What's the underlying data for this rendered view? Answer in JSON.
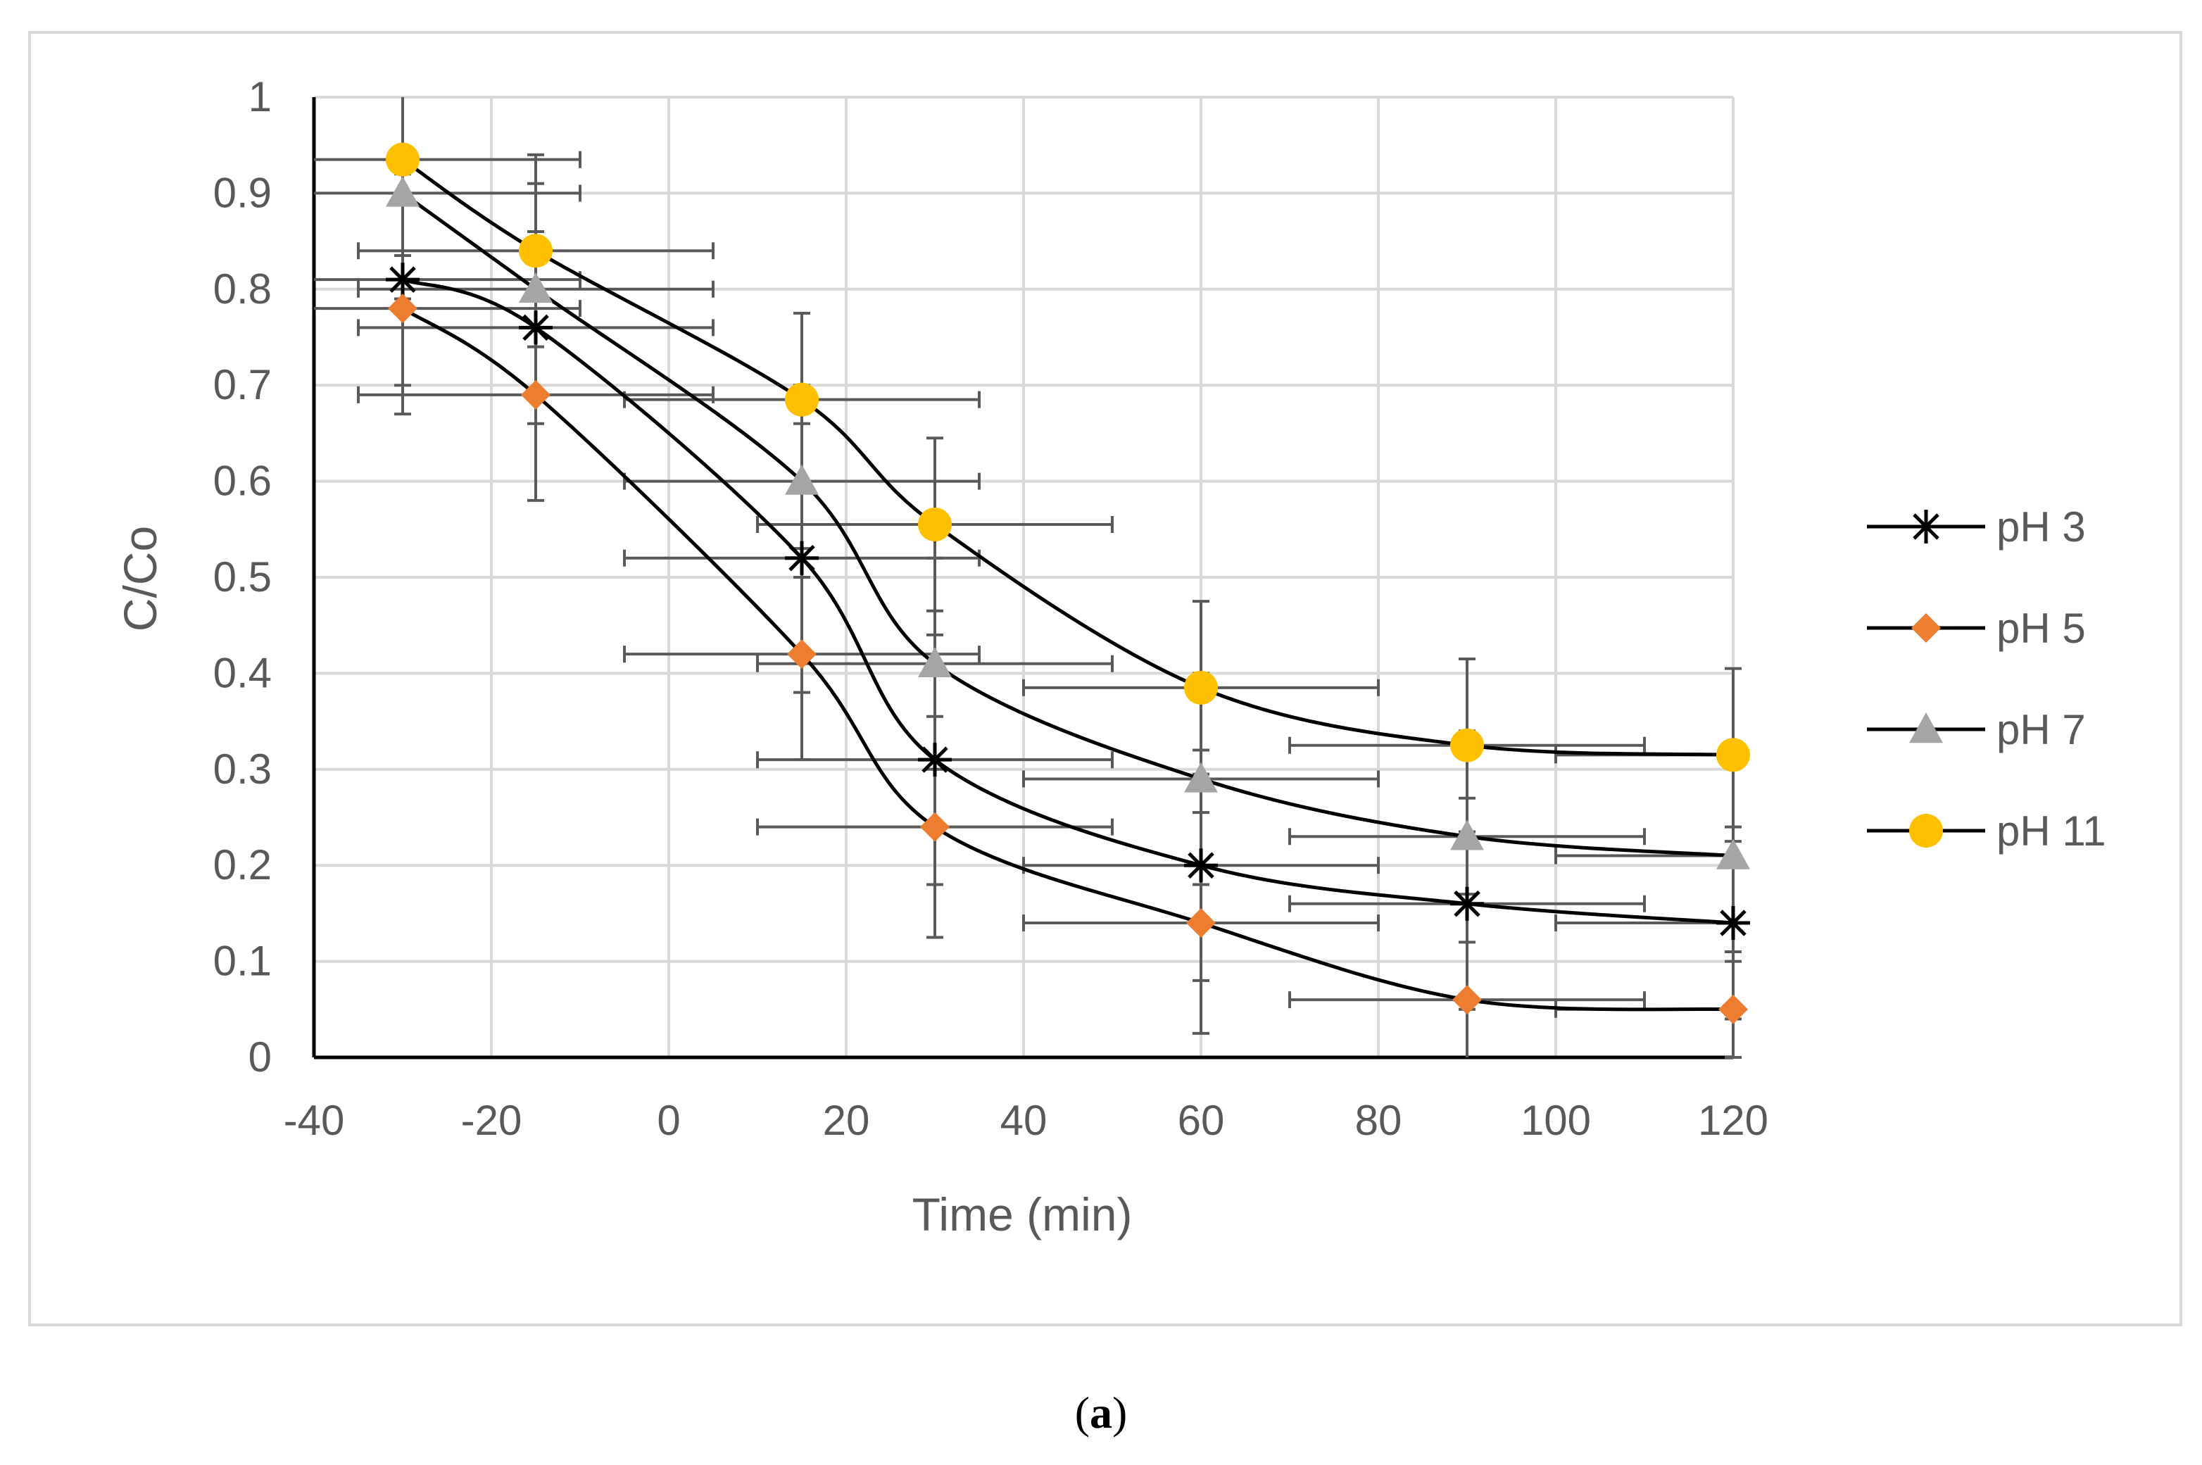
{
  "caption": {
    "open": "(",
    "letter": "a",
    "close": ")"
  },
  "chart_data": {
    "type": "line",
    "xlabel": "Time (min)",
    "ylabel": "C/Co",
    "xlim": [
      -40,
      120
    ],
    "ylim": [
      0,
      1
    ],
    "xticks": [
      -40,
      -20,
      0,
      20,
      40,
      60,
      80,
      100,
      120
    ],
    "yticks": [
      0,
      0.1,
      0.2,
      0.3,
      0.4,
      0.5,
      0.6,
      0.7,
      0.8,
      0.9,
      1
    ],
    "grid": true,
    "legend_position": "right",
    "x": [
      -30,
      -15,
      15,
      30,
      60,
      90,
      120
    ],
    "x_error": 20,
    "series": [
      {
        "name": "pH 3",
        "marker": "asterisk",
        "color": "#000000",
        "values": [
          0.81,
          0.76,
          0.52,
          0.31,
          0.2,
          0.16,
          0.14
        ],
        "y_error": [
          0.11,
          0.1,
          0.14,
          0.13,
          0.12,
          0.11,
          0.1
        ]
      },
      {
        "name": "pH 5",
        "marker": "diamond",
        "color": "#ED7D31",
        "values": [
          0.78,
          0.69,
          0.42,
          0.24,
          0.14,
          0.06,
          0.05
        ],
        "y_error": [
          0.11,
          0.11,
          0.11,
          0.115,
          0.115,
          0.11,
          0.05
        ]
      },
      {
        "name": "pH 7",
        "marker": "triangle",
        "color": "#A5A5A5",
        "values": [
          0.9,
          0.8,
          0.6,
          0.41,
          0.29,
          0.23,
          0.21
        ],
        "y_error": [
          0.11,
          0.11,
          0.1,
          0.11,
          0.11,
          0.11,
          0.1
        ]
      },
      {
        "name": "pH 11",
        "marker": "circle",
        "color": "#FFC000",
        "values": [
          0.935,
          0.84,
          0.685,
          0.555,
          0.385,
          0.325,
          0.315
        ],
        "y_error": [
          0.1,
          0.1,
          0.09,
          0.09,
          0.09,
          0.09,
          0.09
        ]
      }
    ]
  }
}
